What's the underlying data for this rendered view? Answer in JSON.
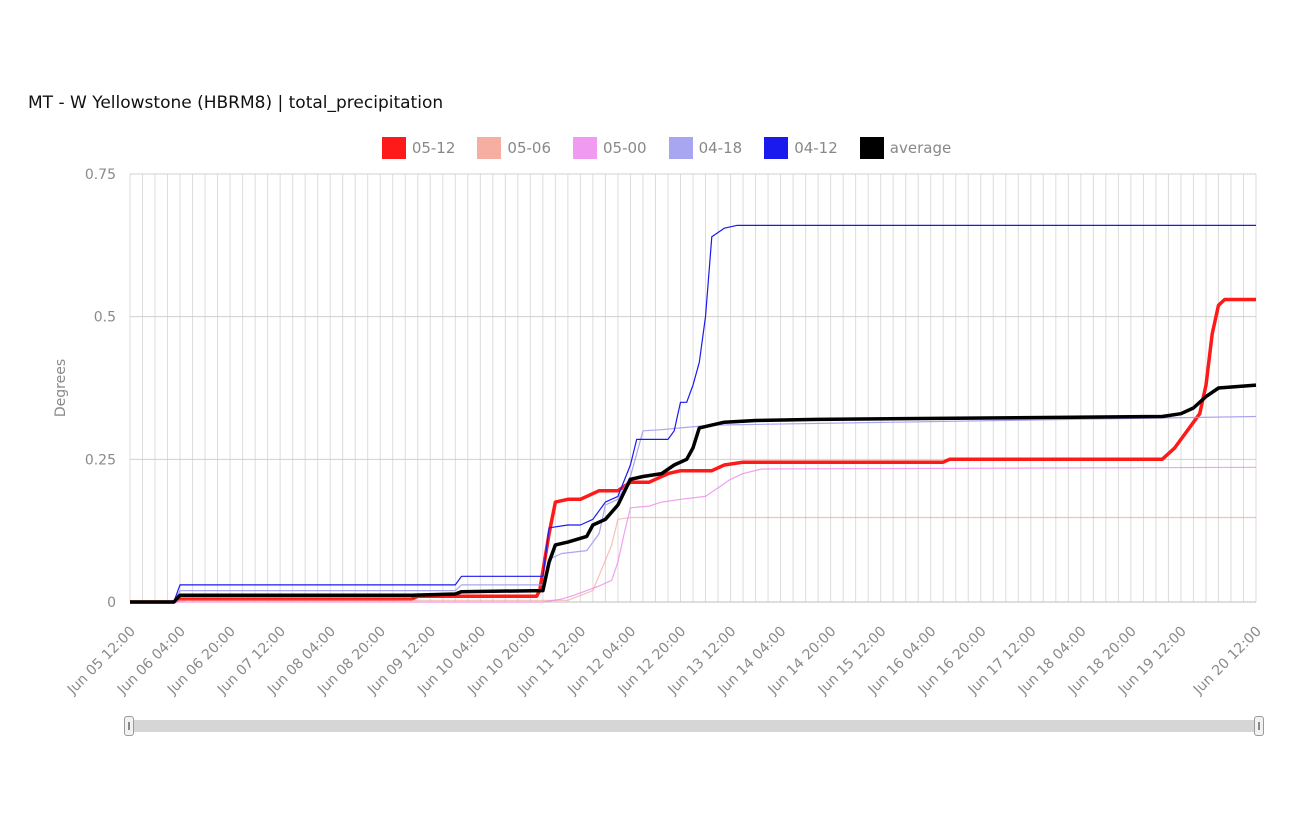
{
  "chart_data": {
    "type": "line",
    "title": "MT - W Yellowstone (HBRM8) | total_precipitation",
    "ylabel": "Degrees",
    "xlabel": "",
    "ylim": [
      0,
      0.75
    ],
    "yticks": [
      {
        "value": 0,
        "label": "0"
      },
      {
        "value": 0.25,
        "label": "0.25"
      },
      {
        "value": 0.5,
        "label": "0.5"
      },
      {
        "value": 0.75,
        "label": "0.75"
      }
    ],
    "x_range_hours": [
      0,
      360
    ],
    "xticks": [
      {
        "label": "Jun 05 12:00",
        "hour": 0
      },
      {
        "label": "Jun 06 04:00",
        "hour": 16
      },
      {
        "label": "Jun 06 20:00",
        "hour": 32
      },
      {
        "label": "Jun 07 12:00",
        "hour": 48
      },
      {
        "label": "Jun 08 04:00",
        "hour": 64
      },
      {
        "label": "Jun 08 20:00",
        "hour": 80
      },
      {
        "label": "Jun 09 12:00",
        "hour": 96
      },
      {
        "label": "Jun 10 04:00",
        "hour": 112
      },
      {
        "label": "Jun 10 20:00",
        "hour": 128
      },
      {
        "label": "Jun 11 12:00",
        "hour": 144
      },
      {
        "label": "Jun 12 04:00",
        "hour": 160
      },
      {
        "label": "Jun 12 20:00",
        "hour": 176
      },
      {
        "label": "Jun 13 12:00",
        "hour": 192
      },
      {
        "label": "Jun 14 04:00",
        "hour": 208
      },
      {
        "label": "Jun 14 20:00",
        "hour": 224
      },
      {
        "label": "Jun 15 12:00",
        "hour": 240
      },
      {
        "label": "Jun 16 04:00",
        "hour": 256
      },
      {
        "label": "Jun 16 20:00",
        "hour": 272
      },
      {
        "label": "Jun 17 12:00",
        "hour": 288
      },
      {
        "label": "Jun 18 04:00",
        "hour": 304
      },
      {
        "label": "Jun 18 20:00",
        "hour": 320
      },
      {
        "label": "Jun 19 12:00",
        "hour": 336
      },
      {
        "label": "Jun 20 12:00",
        "hour": 360
      }
    ],
    "grid": true,
    "legend_position": "top-center",
    "series": [
      {
        "name": "05-12",
        "color": "#ff1a1a",
        "width": 3.5,
        "opacity": 1,
        "points": [
          [
            0,
            0
          ],
          [
            14,
            0
          ],
          [
            16,
            0.005
          ],
          [
            90,
            0.005
          ],
          [
            92,
            0.01
          ],
          [
            130,
            0.01
          ],
          [
            131,
            0.02
          ],
          [
            134,
            0.12
          ],
          [
            136,
            0.175
          ],
          [
            140,
            0.18
          ],
          [
            144,
            0.18
          ],
          [
            150,
            0.195
          ],
          [
            156,
            0.195
          ],
          [
            160,
            0.21
          ],
          [
            166,
            0.21
          ],
          [
            168,
            0.215
          ],
          [
            172,
            0.225
          ],
          [
            176,
            0.23
          ],
          [
            186,
            0.23
          ],
          [
            190,
            0.24
          ],
          [
            196,
            0.245
          ],
          [
            260,
            0.245
          ],
          [
            262,
            0.25
          ],
          [
            330,
            0.25
          ],
          [
            334,
            0.27
          ],
          [
            338,
            0.3
          ],
          [
            342,
            0.33
          ],
          [
            344,
            0.38
          ],
          [
            346,
            0.47
          ],
          [
            348,
            0.52
          ],
          [
            350,
            0.53
          ],
          [
            360,
            0.53
          ]
        ]
      },
      {
        "name": "05-06",
        "color": "#f5a092",
        "width": 1.2,
        "opacity": 0.65,
        "points": [
          [
            0,
            0
          ],
          [
            14,
            0
          ],
          [
            16,
            0.003
          ],
          [
            140,
            0.003
          ],
          [
            148,
            0.02
          ],
          [
            154,
            0.1
          ],
          [
            156,
            0.145
          ],
          [
            160,
            0.148
          ],
          [
            360,
            0.148
          ]
        ]
      },
      {
        "name": "05-00",
        "color": "#ee88ee",
        "width": 1.2,
        "opacity": 0.8,
        "points": [
          [
            0,
            0
          ],
          [
            132,
            0
          ],
          [
            138,
            0.005
          ],
          [
            142,
            0.012
          ],
          [
            146,
            0.02
          ],
          [
            150,
            0.028
          ],
          [
            154,
            0.038
          ],
          [
            156,
            0.07
          ],
          [
            158,
            0.12
          ],
          [
            160,
            0.165
          ],
          [
            166,
            0.168
          ],
          [
            170,
            0.175
          ],
          [
            176,
            0.18
          ],
          [
            184,
            0.185
          ],
          [
            188,
            0.2
          ],
          [
            192,
            0.215
          ],
          [
            196,
            0.225
          ],
          [
            202,
            0.233
          ],
          [
            360,
            0.236
          ]
        ]
      },
      {
        "name": "04-18",
        "color": "#a09cf0",
        "width": 1.2,
        "opacity": 0.9,
        "points": [
          [
            0,
            0
          ],
          [
            14,
            0
          ],
          [
            16,
            0.02
          ],
          [
            104,
            0.02
          ],
          [
            106,
            0.03
          ],
          [
            132,
            0.03
          ],
          [
            134,
            0.075
          ],
          [
            138,
            0.085
          ],
          [
            146,
            0.09
          ],
          [
            150,
            0.12
          ],
          [
            152,
            0.17
          ],
          [
            156,
            0.18
          ],
          [
            160,
            0.22
          ],
          [
            164,
            0.3
          ],
          [
            170,
            0.302
          ],
          [
            176,
            0.305
          ],
          [
            186,
            0.31
          ],
          [
            360,
            0.325
          ]
        ]
      },
      {
        "name": "04-12",
        "color": "#1a1aee",
        "width": 1.2,
        "opacity": 1,
        "points": [
          [
            0,
            0
          ],
          [
            14,
            0
          ],
          [
            16,
            0.03
          ],
          [
            104,
            0.03
          ],
          [
            106,
            0.045
          ],
          [
            132,
            0.045
          ],
          [
            134,
            0.13
          ],
          [
            140,
            0.135
          ],
          [
            144,
            0.135
          ],
          [
            148,
            0.145
          ],
          [
            152,
            0.175
          ],
          [
            156,
            0.185
          ],
          [
            160,
            0.24
          ],
          [
            162,
            0.285
          ],
          [
            172,
            0.285
          ],
          [
            174,
            0.3
          ],
          [
            176,
            0.35
          ],
          [
            178,
            0.35
          ],
          [
            180,
            0.38
          ],
          [
            182,
            0.42
          ],
          [
            184,
            0.5
          ],
          [
            186,
            0.64
          ],
          [
            190,
            0.655
          ],
          [
            194,
            0.66
          ],
          [
            220,
            0.66
          ],
          [
            360,
            0.66
          ]
        ]
      },
      {
        "name": "average",
        "color": "#000000",
        "width": 3.5,
        "opacity": 1,
        "points": [
          [
            0,
            0
          ],
          [
            14,
            0
          ],
          [
            16,
            0.012
          ],
          [
            90,
            0.012
          ],
          [
            104,
            0.014
          ],
          [
            106,
            0.018
          ],
          [
            132,
            0.02
          ],
          [
            134,
            0.07
          ],
          [
            136,
            0.1
          ],
          [
            140,
            0.105
          ],
          [
            146,
            0.115
          ],
          [
            148,
            0.135
          ],
          [
            152,
            0.145
          ],
          [
            156,
            0.17
          ],
          [
            160,
            0.215
          ],
          [
            164,
            0.22
          ],
          [
            170,
            0.225
          ],
          [
            174,
            0.24
          ],
          [
            178,
            0.25
          ],
          [
            180,
            0.27
          ],
          [
            182,
            0.305
          ],
          [
            186,
            0.31
          ],
          [
            190,
            0.315
          ],
          [
            200,
            0.318
          ],
          [
            220,
            0.32
          ],
          [
            330,
            0.325
          ],
          [
            336,
            0.33
          ],
          [
            340,
            0.34
          ],
          [
            344,
            0.36
          ],
          [
            348,
            0.375
          ],
          [
            360,
            0.38
          ]
        ]
      }
    ]
  }
}
